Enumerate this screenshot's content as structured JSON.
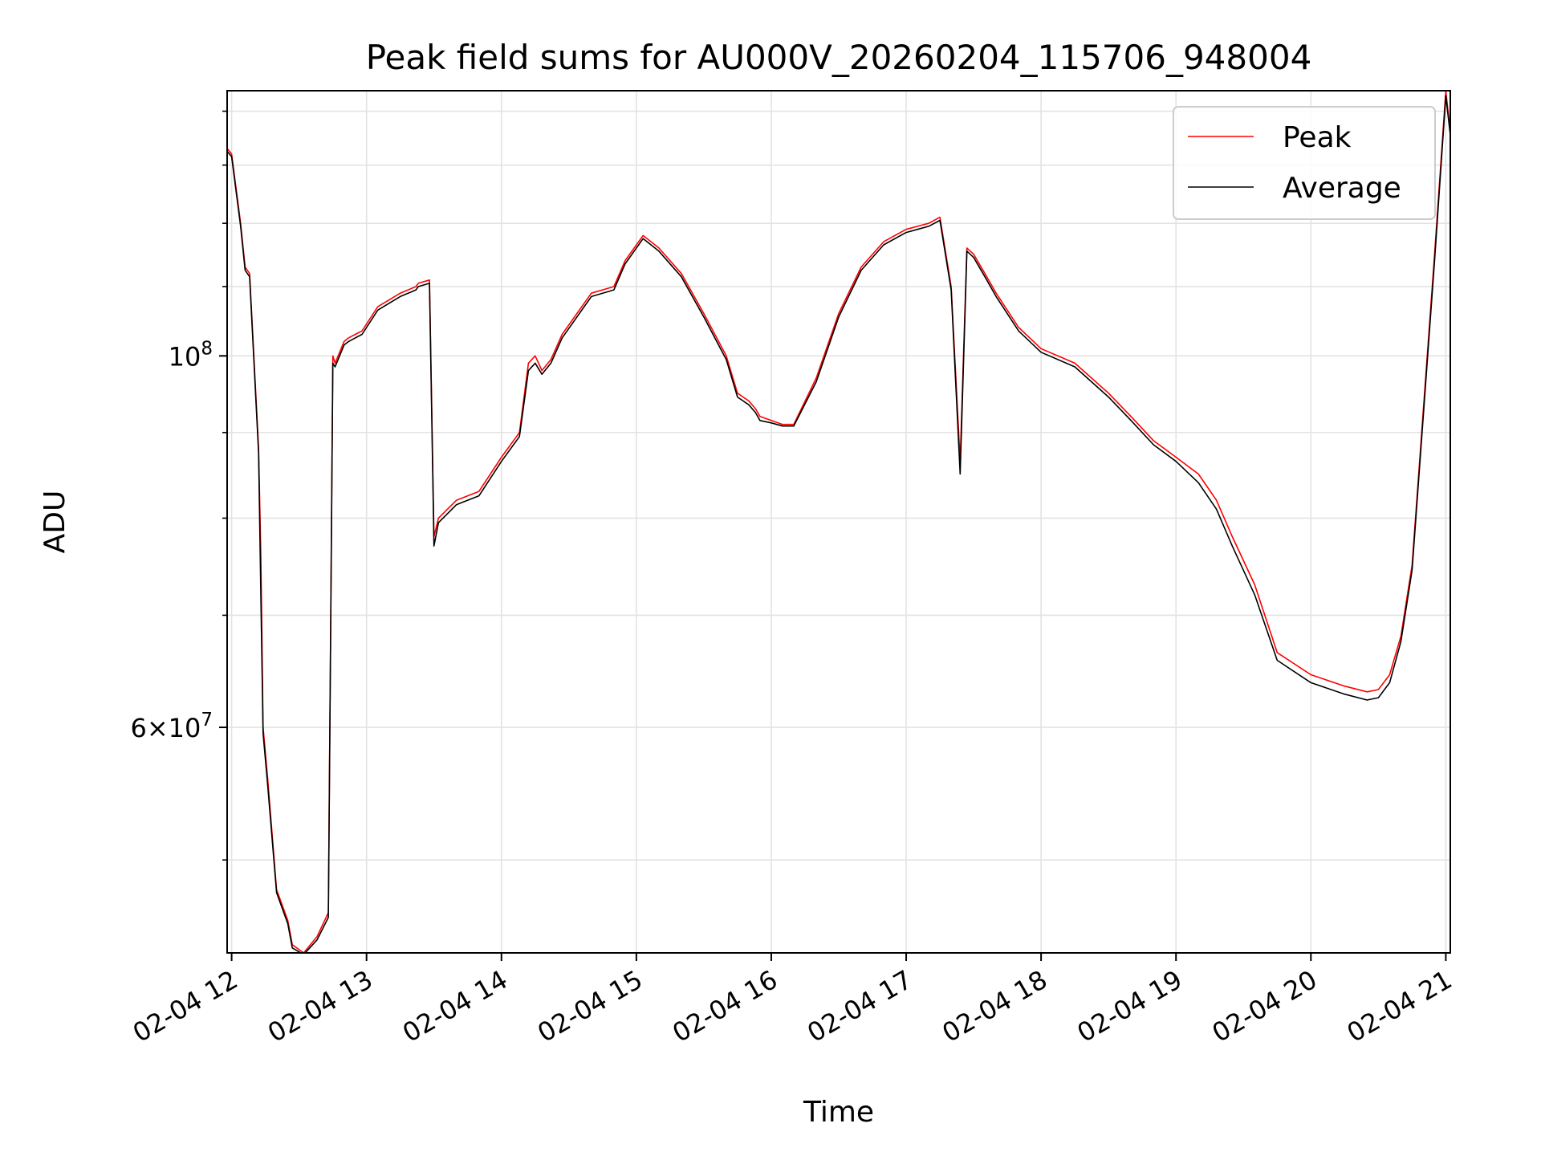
{
  "chart_data": {
    "type": "line",
    "title": "Peak field sums for AU000V_20260204_115706_948004",
    "xlabel": "Time",
    "ylabel": "ADU",
    "y_scale": "log",
    "xlim": [
      "02-04 11:58",
      "02-04 21:02"
    ],
    "ylim": [
      44000000,
      144000000
    ],
    "x_ticks": [
      "02-04 12",
      "02-04 13",
      "02-04 14",
      "02-04 15",
      "02-04 16",
      "02-04 17",
      "02-04 18",
      "02-04 19",
      "02-04 20",
      "02-04 21"
    ],
    "y_ticks": [
      {
        "value": 100000000,
        "label": "10^8"
      },
      {
        "value": 60000000,
        "label": "6×10^7"
      }
    ],
    "grid": true,
    "legend": {
      "position": "top-right",
      "entries": [
        "Peak",
        "Average"
      ]
    },
    "series": [
      {
        "name": "Peak",
        "color": "#ff0000",
        "x": [
          "02-04 11:58",
          "02-04 12:00",
          "02-04 12:04",
          "02-04 12:06",
          "02-04 12:08",
          "02-04 12:12",
          "02-04 12:13",
          "02-04 12:14",
          "02-04 12:16",
          "02-04 12:20",
          "02-04 12:25",
          "02-04 12:27",
          "02-04 12:32",
          "02-04 12:38",
          "02-04 12:43",
          "02-04 12:45",
          "02-04 12:46",
          "02-04 12:50",
          "02-04 12:52",
          "02-04 12:55",
          "02-04 12:58",
          "02-04 13:05",
          "02-04 13:15",
          "02-04 13:22",
          "02-04 13:23",
          "02-04 13:28",
          "02-04 13:30",
          "02-04 13:32",
          "02-04 13:40",
          "02-04 13:45",
          "02-04 13:50",
          "02-04 14:00",
          "02-04 14:08",
          "02-04 14:12",
          "02-04 14:15",
          "02-04 14:18",
          "02-04 14:22",
          "02-04 14:27",
          "02-04 14:40",
          "02-04 14:50",
          "02-04 14:55",
          "02-04 15:03",
          "02-04 15:10",
          "02-04 15:20",
          "02-04 15:30",
          "02-04 15:40",
          "02-04 15:45",
          "02-04 15:50",
          "02-04 15:53",
          "02-04 15:55",
          "02-04 16:00",
          "02-04 16:05",
          "02-04 16:10",
          "02-04 16:20",
          "02-04 16:30",
          "02-04 16:40",
          "02-04 16:50",
          "02-04 17:00",
          "02-04 17:10",
          "02-04 17:15",
          "02-04 17:20",
          "02-04 17:24",
          "02-04 17:27",
          "02-04 17:30",
          "02-04 17:35",
          "02-04 17:40",
          "02-04 17:50",
          "02-04 18:00",
          "02-04 18:15",
          "02-04 18:30",
          "02-04 18:40",
          "02-04 18:50",
          "02-04 19:00",
          "02-04 19:10",
          "02-04 19:18",
          "02-04 19:25",
          "02-04 19:35",
          "02-04 19:45",
          "02-04 20:00",
          "02-04 20:15",
          "02-04 20:25",
          "02-04 20:30",
          "02-04 20:35",
          "02-04 20:40",
          "02-04 20:45",
          "02-04 20:55",
          "02-04 21:00",
          "02-04 21:02"
        ],
        "y": [
          133000000,
          132000000,
          120000000,
          113000000,
          112000000,
          88000000,
          76000000,
          60000000,
          56000000,
          48000000,
          46000000,
          44500000,
          44000000,
          45000000,
          46500000,
          100000000,
          99000000,
          102000000,
          102500000,
          103000000,
          103500000,
          107000000,
          109000000,
          110000000,
          110500000,
          111000000,
          78000000,
          80000000,
          82000000,
          82500000,
          83000000,
          87000000,
          90000000,
          99000000,
          100000000,
          98000000,
          99500000,
          103000000,
          109000000,
          110000000,
          114000000,
          118000000,
          116000000,
          112000000,
          106000000,
          100000000,
          95000000,
          94000000,
          93000000,
          92000000,
          91500000,
          91000000,
          91000000,
          97000000,
          106000000,
          113000000,
          117000000,
          119000000,
          120000000,
          121000000,
          110000000,
          86500000,
          116000000,
          115000000,
          112000000,
          109000000,
          104000000,
          101000000,
          99000000,
          95000000,
          92000000,
          89000000,
          87000000,
          85000000,
          82000000,
          78000000,
          73000000,
          66500000,
          64500000,
          63500000,
          63000000,
          63200000,
          64500000,
          68000000,
          75000000,
          115000000,
          144000000,
          136000000
        ]
      },
      {
        "name": "Average",
        "color": "#000000",
        "x": [
          "02-04 11:58",
          "02-04 12:00",
          "02-04 12:04",
          "02-04 12:06",
          "02-04 12:08",
          "02-04 12:12",
          "02-04 12:13",
          "02-04 12:14",
          "02-04 12:16",
          "02-04 12:20",
          "02-04 12:25",
          "02-04 12:27",
          "02-04 12:32",
          "02-04 12:38",
          "02-04 12:43",
          "02-04 12:45",
          "02-04 12:46",
          "02-04 12:50",
          "02-04 12:52",
          "02-04 12:55",
          "02-04 12:58",
          "02-04 13:05",
          "02-04 13:15",
          "02-04 13:22",
          "02-04 13:23",
          "02-04 13:28",
          "02-04 13:30",
          "02-04 13:32",
          "02-04 13:40",
          "02-04 13:45",
          "02-04 13:50",
          "02-04 14:00",
          "02-04 14:08",
          "02-04 14:12",
          "02-04 14:15",
          "02-04 14:18",
          "02-04 14:22",
          "02-04 14:27",
          "02-04 14:40",
          "02-04 14:50",
          "02-04 14:55",
          "02-04 15:03",
          "02-04 15:10",
          "02-04 15:20",
          "02-04 15:30",
          "02-04 15:40",
          "02-04 15:45",
          "02-04 15:50",
          "02-04 15:53",
          "02-04 15:55",
          "02-04 16:00",
          "02-04 16:05",
          "02-04 16:10",
          "02-04 16:20",
          "02-04 16:30",
          "02-04 16:40",
          "02-04 16:50",
          "02-04 17:00",
          "02-04 17:10",
          "02-04 17:15",
          "02-04 17:20",
          "02-04 17:24",
          "02-04 17:27",
          "02-04 17:30",
          "02-04 17:35",
          "02-04 17:40",
          "02-04 17:50",
          "02-04 18:00",
          "02-04 18:15",
          "02-04 18:30",
          "02-04 18:40",
          "02-04 18:50",
          "02-04 19:00",
          "02-04 19:10",
          "02-04 19:18",
          "02-04 19:25",
          "02-04 19:35",
          "02-04 19:45",
          "02-04 20:00",
          "02-04 20:15",
          "02-04 20:25",
          "02-04 20:30",
          "02-04 20:35",
          "02-04 20:40",
          "02-04 20:45",
          "02-04 20:55",
          "02-04 21:00",
          "02-04 21:02"
        ],
        "y": [
          132500000,
          131500000,
          119500000,
          112500000,
          111500000,
          87500000,
          72000000,
          59500000,
          55500000,
          47800000,
          45800000,
          44300000,
          43900000,
          44800000,
          46200000,
          99000000,
          98500000,
          101500000,
          102000000,
          102500000,
          103000000,
          106500000,
          108500000,
          109500000,
          110000000,
          110500000,
          77000000,
          79500000,
          81500000,
          82000000,
          82500000,
          86500000,
          89500000,
          98000000,
          99000000,
          97500000,
          99000000,
          102500000,
          108500000,
          109500000,
          113500000,
          117500000,
          115500000,
          111500000,
          105500000,
          99500000,
          94500000,
          93500000,
          92500000,
          91500000,
          91200000,
          90800000,
          90800000,
          96500000,
          105500000,
          112500000,
          116500000,
          118500000,
          119500000,
          120500000,
          109500000,
          85000000,
          115500000,
          114500000,
          111500000,
          108500000,
          103500000,
          100500000,
          98500000,
          94500000,
          91500000,
          88500000,
          86500000,
          84000000,
          81000000,
          77000000,
          72000000,
          65800000,
          63800000,
          62800000,
          62300000,
          62500000,
          63800000,
          67500000,
          74500000,
          114000000,
          143000000,
          135500000
        ]
      }
    ]
  }
}
